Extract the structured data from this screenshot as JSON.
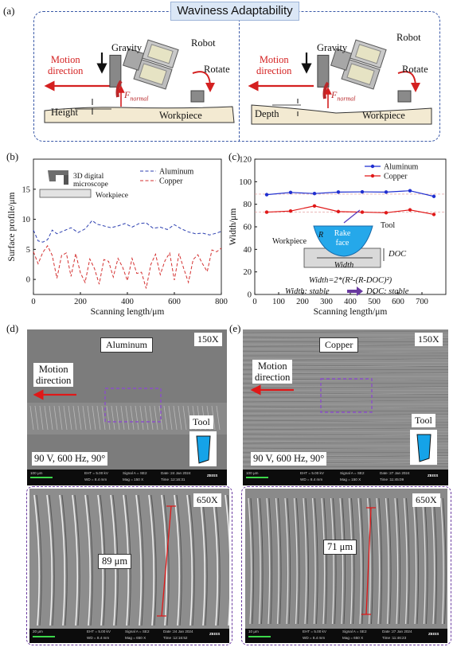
{
  "panel_labels": {
    "a": "(a)",
    "b": "(b)",
    "c": "(c)",
    "d": "(d)",
    "e": "(e)"
  },
  "panel_a": {
    "title": "Waviness Adaptability",
    "left": {
      "gravity": "Gravity",
      "robot": "Robot",
      "rotate": "Rotate",
      "motion": "Motion\ndirection",
      "force": "F",
      "force_sub": "normal",
      "measure": "Height",
      "workpiece": "Workpiece"
    },
    "right": {
      "gravity": "Gravity",
      "robot": "Robot",
      "rotate": "Rotate",
      "motion": "Motion\ndirection",
      "force": "F",
      "force_sub": "normal",
      "measure": "Depth",
      "workpiece": "Workpiece"
    },
    "colors": {
      "frame": "#3b5aa8",
      "motion": "#d42020",
      "workpiece": "#f3ead2"
    }
  },
  "chart_data": [
    {
      "type": "line",
      "panel": "b",
      "xlabel": "Scanning length/μm",
      "ylabel": "Surface profile/μm",
      "xlim": [
        0,
        800
      ],
      "ylim": [
        -2.5,
        20
      ],
      "xticks": [
        0,
        200,
        400,
        600,
        800
      ],
      "yticks": [
        0,
        5,
        10,
        15
      ],
      "legend_position": "top-right",
      "inset_labels": {
        "microscope": "3D digital\nmicroscope",
        "workpiece": "Workpiece"
      },
      "series": [
        {
          "name": "Aluminum",
          "color": "#2c3fb0",
          "dash": "dashed",
          "x": [
            0,
            20,
            40,
            60,
            80,
            100,
            130,
            160,
            190,
            220,
            250,
            270,
            300,
            330,
            360,
            390,
            420,
            450,
            480,
            510,
            540,
            570,
            600,
            630,
            660,
            690,
            720,
            750,
            780,
            800
          ],
          "y": [
            8.2,
            6.4,
            6.2,
            6.6,
            8.2,
            7.6,
            8.1,
            8.6,
            7.8,
            8.4,
            9.8,
            9.2,
            8.9,
            8.6,
            8.9,
            9.3,
            8.7,
            9.3,
            9.4,
            8.5,
            8.7,
            8.3,
            9.1,
            8.4,
            7.9,
            7.6,
            7.7,
            7.4,
            7.7,
            8.0
          ]
        },
        {
          "name": "Copper",
          "color": "#d43030",
          "dash": "dashed",
          "x": [
            0,
            20,
            40,
            60,
            80,
            100,
            120,
            140,
            160,
            180,
            200,
            220,
            240,
            260,
            280,
            300,
            320,
            340,
            360,
            380,
            400,
            420,
            440,
            460,
            480,
            500,
            520,
            540,
            560,
            580,
            600,
            620,
            640,
            660,
            680,
            700,
            720,
            740,
            760,
            780,
            800
          ],
          "y": [
            4.6,
            2.6,
            4.5,
            5.6,
            4.0,
            0.2,
            4.0,
            4.4,
            0.5,
            4.3,
            1.1,
            -0.5,
            3.4,
            1.8,
            -0.8,
            3.3,
            3.0,
            0.4,
            3.5,
            2.0,
            -0.2,
            3.5,
            1.0,
            1.2,
            -1.5,
            2.5,
            4.2,
            0.8,
            3.1,
            4.4,
            -0.1,
            4.3,
            1.8,
            -0.5,
            3.3,
            4.1,
            2.6,
            1.3,
            4.9,
            4.6,
            5.2
          ]
        }
      ]
    },
    {
      "type": "line",
      "panel": "c",
      "xlabel": "Scanning length/μm",
      "ylabel": "Width/μm",
      "xlim": [
        0,
        800
      ],
      "ylim": [
        0,
        120
      ],
      "xticks": [
        0,
        100,
        200,
        300,
        400,
        500,
        600,
        700
      ],
      "yticks": [
        0,
        20,
        40,
        60,
        80,
        100,
        120
      ],
      "legend_position": "top-right",
      "series": [
        {
          "name": "Aluminum",
          "color": "#1f2fd0",
          "marker": "circle",
          "x": [
            50,
            150,
            250,
            350,
            450,
            550,
            650,
            750
          ],
          "y": [
            88.5,
            90.5,
            89.5,
            90.8,
            91,
            90.8,
            92,
            87
          ]
        },
        {
          "name": "Copper",
          "color": "#e01818",
          "marker": "circle",
          "x": [
            50,
            150,
            250,
            350,
            450,
            550,
            650,
            750
          ],
          "y": [
            73,
            74,
            78.5,
            73.5,
            73,
            72.5,
            75,
            71
          ]
        }
      ],
      "reference_lines": [
        89,
        73
      ],
      "inset": {
        "workpiece": "Workpiece",
        "tool": "Tool",
        "rake": "Rake\nface",
        "r": "R",
        "width": "Width",
        "doc": "DOC"
      },
      "annotations": {
        "formula": "Width=2*(R²-(R-DOC)²)",
        "stable_left": "Width: stable",
        "stable_right": "DOC: stable"
      }
    }
  ],
  "panel_d": {
    "material": "Aluminum",
    "mag_top": "150X",
    "motion": "Motion\ndirection",
    "tool": "Tool",
    "params": "90 V, 600 Hz, 90°",
    "mag_bottom": "650X",
    "measure": "89 μm",
    "footer_top": {
      "scale": "100 μm",
      "eht": "EHT = 5.00 kV",
      "wd": "WD = 8.4 mm",
      "signal": "Signal A = SE2",
      "mag": "Mag = 150 X",
      "date": "Date :24 Jan 2024",
      "time": "Time :12:16:31",
      "brand": "ZEISS"
    },
    "footer_bottom": {
      "scale": "20 μm",
      "eht": "EHT = 5.00 kV",
      "wd": "WD = 8.4 mm",
      "signal": "Signal A = SE2",
      "mag": "Mag = 650 X",
      "date": "Date :24 Jan 2024",
      "time": "Time :12:16:52",
      "brand": "ZEISS"
    }
  },
  "panel_e": {
    "material": "Copper",
    "mag_top": "150X",
    "motion": "Motion\ndirection",
    "tool": "Tool",
    "params": "90 V, 600 Hz, 90°",
    "mag_bottom": "650X",
    "measure": "71 μm",
    "footer_top": {
      "scale": "100 μm",
      "eht": "EHT = 5.00 kV",
      "wd": "WD = 8.4 mm",
      "signal": "Signal A = SE2",
      "mag": "Mag = 150 X",
      "date": "Date :27 Jan 2024",
      "time": "Time :11:45:09",
      "brand": "ZEISS"
    },
    "footer_bottom": {
      "scale": "10 μm",
      "eht": "EHT = 5.00 kV",
      "wd": "WD = 8.4 mm",
      "signal": "Signal A = SE2",
      "mag": "Mag = 650 X",
      "date": "Date :27 Jan 2024",
      "time": "Time :11:46:23",
      "brand": "ZEISS"
    }
  }
}
